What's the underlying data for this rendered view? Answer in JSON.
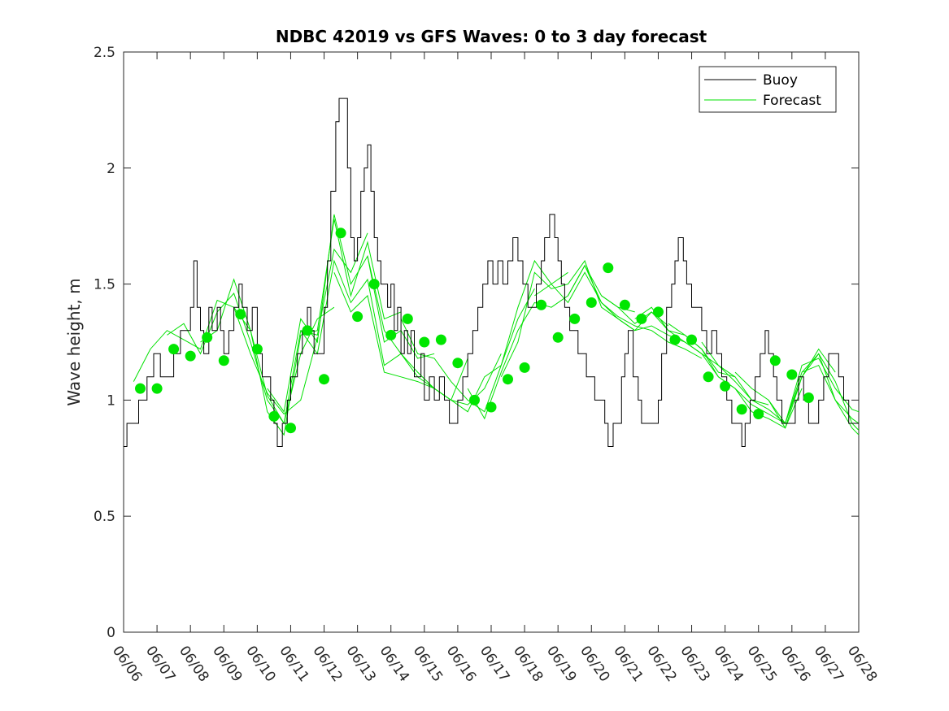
{
  "chart_data": {
    "type": "line",
    "title": "NDBC 42019 vs GFS Waves: 0 to 3 day forecast",
    "ylabel": "Wave height, m",
    "xlabel": "",
    "ylim": [
      0,
      2.5
    ],
    "yticks": [
      0,
      0.5,
      1,
      1.5,
      2,
      2.5
    ],
    "ytick_labels": [
      "0",
      "0.5",
      "1",
      "1.5",
      "2",
      "2.5"
    ],
    "xlim": [
      0,
      22
    ],
    "xtick_labels": [
      "06/06",
      "06/07",
      "06/08",
      "06/09",
      "06/10",
      "06/11",
      "06/12",
      "06/13",
      "06/14",
      "06/15",
      "06/16",
      "06/17",
      "06/18",
      "06/19",
      "06/20",
      "06/21",
      "06/22",
      "06/23",
      "06/24",
      "06/25",
      "06/26",
      "06/27",
      "06/28"
    ],
    "grid": false,
    "legend": {
      "placement": "top-right",
      "entries": [
        "Buoy",
        "Forecast"
      ]
    },
    "colors": {
      "buoy": "#000000",
      "forecast": "#00e000",
      "marker": "#00e600",
      "axis": "#262626"
    },
    "buoy": {
      "name": "Buoy",
      "x": [
        0,
        0.1,
        0.25,
        0.45,
        0.55,
        0.7,
        0.9,
        1.1,
        1.3,
        1.5,
        1.7,
        1.9,
        2.0,
        2.1,
        2.2,
        2.3,
        2.4,
        2.55,
        2.65,
        2.8,
        2.9,
        3.0,
        3.15,
        3.3,
        3.45,
        3.55,
        3.7,
        3.85,
        4.0,
        4.15,
        4.25,
        4.4,
        4.5,
        4.6,
        4.75,
        4.9,
        5.0,
        5.1,
        5.2,
        5.35,
        5.5,
        5.6,
        5.7,
        5.85,
        6.0,
        6.1,
        6.2,
        6.35,
        6.45,
        6.55,
        6.7,
        6.8,
        6.9,
        7.0,
        7.1,
        7.2,
        7.3,
        7.4,
        7.5,
        7.6,
        7.7,
        7.8,
        7.9,
        8.0,
        8.1,
        8.2,
        8.3,
        8.4,
        8.5,
        8.6,
        8.7,
        8.8,
        8.9,
        9.0,
        9.15,
        9.3,
        9.45,
        9.6,
        9.75,
        9.9,
        10.0,
        10.15,
        10.3,
        10.45,
        10.6,
        10.75,
        10.9,
        11.05,
        11.2,
        11.35,
        11.5,
        11.65,
        11.8,
        11.95,
        12.1,
        12.25,
        12.35,
        12.5,
        12.6,
        12.75,
        12.9,
        13.0,
        13.1,
        13.2,
        13.35,
        13.5,
        13.6,
        13.7,
        13.85,
        14.0,
        14.1,
        14.25,
        14.4,
        14.5,
        14.65,
        14.8,
        14.9,
        15.0,
        15.1,
        15.25,
        15.4,
        15.5,
        15.6,
        15.75,
        15.85,
        16.0,
        16.1,
        16.25,
        16.4,
        16.5,
        16.6,
        16.75,
        16.85,
        17.0,
        17.15,
        17.3,
        17.45,
        17.6,
        17.75,
        17.9,
        18.05,
        18.2,
        18.35,
        18.5,
        18.6,
        18.75,
        18.9,
        19.05,
        19.2,
        19.3,
        19.45,
        19.55,
        19.7,
        19.85,
        20.0,
        20.1,
        20.2,
        20.35,
        20.5,
        20.65,
        20.8,
        20.95,
        21.1,
        21.25,
        21.4,
        21.55,
        21.7,
        21.85,
        22.0
      ],
      "values": [
        0.8,
        0.9,
        0.9,
        1.0,
        1.0,
        1.1,
        1.2,
        1.1,
        1.1,
        1.2,
        1.3,
        1.3,
        1.4,
        1.6,
        1.4,
        1.3,
        1.2,
        1.4,
        1.3,
        1.4,
        1.3,
        1.2,
        1.3,
        1.4,
        1.5,
        1.4,
        1.3,
        1.4,
        1.2,
        1.1,
        1.1,
        1.0,
        0.9,
        0.8,
        0.9,
        1.0,
        1.1,
        1.1,
        1.2,
        1.3,
        1.4,
        1.3,
        1.2,
        1.2,
        1.4,
        1.6,
        1.9,
        2.2,
        2.3,
        2.3,
        2.0,
        1.7,
        1.6,
        1.7,
        1.9,
        2.0,
        2.1,
        1.9,
        1.7,
        1.6,
        1.5,
        1.5,
        1.4,
        1.5,
        1.3,
        1.4,
        1.2,
        1.3,
        1.2,
        1.3,
        1.1,
        1.1,
        1.2,
        1.0,
        1.1,
        1.0,
        1.1,
        1.0,
        0.9,
        0.9,
        1.0,
        1.1,
        1.2,
        1.3,
        1.4,
        1.5,
        1.6,
        1.5,
        1.6,
        1.5,
        1.6,
        1.7,
        1.6,
        1.5,
        1.4,
        1.4,
        1.5,
        1.6,
        1.7,
        1.8,
        1.7,
        1.6,
        1.5,
        1.4,
        1.3,
        1.3,
        1.2,
        1.2,
        1.1,
        1.1,
        1.0,
        1.0,
        0.9,
        0.8,
        0.9,
        0.9,
        1.1,
        1.2,
        1.3,
        1.1,
        1.0,
        0.9,
        0.9,
        0.9,
        0.9,
        1.0,
        1.2,
        1.4,
        1.5,
        1.6,
        1.7,
        1.6,
        1.5,
        1.4,
        1.4,
        1.3,
        1.2,
        1.3,
        1.2,
        1.1,
        1.0,
        0.9,
        0.9,
        0.8,
        0.9,
        1.0,
        1.1,
        1.2,
        1.3,
        1.2,
        1.1,
        1.0,
        0.9,
        0.9,
        0.9,
        1.0,
        1.1,
        1.0,
        0.9,
        0.9,
        1.0,
        1.1,
        1.2,
        1.2,
        1.1,
        1.0,
        0.9,
        0.9,
        0.9
      ]
    },
    "forecast_series": [
      {
        "x": [
          0.3,
          0.8,
          1.3,
          1.8,
          2.3,
          2.8,
          3.3,
          3.8,
          4.3,
          4.8,
          5.3,
          5.8
        ],
        "values": [
          1.08,
          1.22,
          1.3,
          1.26,
          1.22,
          1.43,
          1.4,
          1.2,
          1.03,
          0.94,
          1.0,
          1.27
        ]
      },
      {
        "x": [
          1.3,
          1.8,
          2.3,
          2.8,
          3.3,
          3.8,
          4.3,
          4.8,
          5.3,
          5.8,
          6.3
        ],
        "values": [
          1.28,
          1.33,
          1.2,
          1.38,
          1.46,
          1.25,
          1.0,
          0.9,
          1.2,
          1.35,
          1.4
        ]
      },
      {
        "x": [
          2.3,
          2.8,
          3.3,
          3.8,
          4.3,
          4.8,
          5.3,
          5.8,
          6.3,
          6.8,
          7.3
        ],
        "values": [
          1.25,
          1.3,
          1.52,
          1.3,
          1.02,
          0.9,
          1.3,
          1.28,
          1.65,
          1.55,
          1.72
        ]
      },
      {
        "x": [
          3.3,
          3.8,
          4.3,
          4.8,
          5.3,
          5.8,
          6.3,
          6.8,
          7.3,
          7.8,
          8.3
        ],
        "values": [
          1.4,
          1.3,
          0.95,
          0.85,
          1.28,
          1.3,
          1.78,
          1.45,
          1.68,
          1.35,
          1.38
        ]
      },
      {
        "x": [
          4.3,
          4.8,
          5.3,
          5.8,
          6.3,
          6.8,
          7.3,
          7.8,
          8.3,
          8.8,
          9.3
        ],
        "values": [
          1.05,
          0.95,
          1.35,
          1.25,
          1.8,
          1.5,
          1.62,
          1.25,
          1.3,
          1.18,
          1.2
        ]
      },
      {
        "x": [
          5.3,
          5.8,
          6.3,
          6.8,
          7.3,
          7.8,
          8.3,
          8.8,
          9.3,
          9.8,
          10.3
        ],
        "values": [
          1.3,
          1.2,
          1.6,
          1.42,
          1.52,
          1.15,
          1.2,
          1.12,
          1.05,
          1.0,
          1.18
        ]
      },
      {
        "x": [
          6.3,
          6.8,
          7.3,
          7.8,
          8.3,
          8.8,
          9.3,
          9.8,
          10.3,
          10.8,
          11.3
        ],
        "values": [
          1.55,
          1.38,
          1.45,
          1.12,
          1.1,
          1.08,
          1.05,
          1.0,
          0.98,
          1.05,
          1.2
        ]
      },
      {
        "x": [
          7.3,
          7.8,
          8.3,
          8.8,
          9.3,
          9.8,
          10.3,
          10.8,
          11.3,
          11.8,
          12.3
        ],
        "values": [
          1.62,
          1.3,
          1.2,
          1.1,
          1.05,
          1.0,
          0.95,
          1.1,
          1.15,
          1.35,
          1.48
        ]
      },
      {
        "x": [
          8.3,
          8.8,
          9.3,
          9.8,
          10.3,
          10.8,
          11.3,
          11.8,
          12.3,
          12.8,
          13.3
        ],
        "values": [
          1.35,
          1.2,
          1.18,
          1.08,
          1.0,
          0.95,
          1.15,
          1.4,
          1.6,
          1.5,
          1.55
        ]
      },
      {
        "x": [
          10.3,
          10.8,
          11.3,
          11.8,
          12.3,
          12.8,
          13.3,
          13.8,
          14.3,
          14.8,
          15.3
        ],
        "values": [
          1.05,
          0.92,
          1.12,
          1.3,
          1.42,
          1.4,
          1.45,
          1.58,
          1.45,
          1.4,
          1.38
        ]
      },
      {
        "x": [
          11.3,
          11.8,
          12.3,
          12.8,
          13.3,
          13.8,
          14.3,
          14.8,
          15.3,
          15.8,
          16.3
        ],
        "values": [
          1.1,
          1.25,
          1.55,
          1.48,
          1.5,
          1.6,
          1.4,
          1.35,
          1.3,
          1.38,
          1.32
        ]
      },
      {
        "x": [
          12.3,
          12.8,
          13.3,
          13.8,
          14.3,
          14.8,
          15.3,
          15.8,
          16.3,
          16.8,
          17.3
        ],
        "values": [
          1.45,
          1.5,
          1.42,
          1.55,
          1.42,
          1.36,
          1.32,
          1.3,
          1.25,
          1.22,
          1.18
        ]
      },
      {
        "x": [
          13.3,
          13.8,
          14.3,
          14.8,
          15.3,
          15.8,
          16.3,
          16.8,
          17.3,
          17.8,
          18.3
        ],
        "values": [
          1.45,
          1.58,
          1.42,
          1.35,
          1.3,
          1.32,
          1.28,
          1.25,
          1.2,
          1.15,
          1.1
        ]
      },
      {
        "x": [
          14.3,
          14.8,
          15.3,
          15.8,
          16.3,
          16.8,
          17.3,
          17.8,
          18.3,
          18.8,
          19.3
        ],
        "values": [
          1.45,
          1.4,
          1.33,
          1.38,
          1.3,
          1.28,
          1.22,
          1.12,
          1.1,
          1.0,
          0.98
        ]
      },
      {
        "x": [
          15.3,
          15.8,
          16.3,
          16.8,
          17.3,
          17.8,
          18.3,
          18.8,
          19.3,
          19.8,
          20.3
        ],
        "values": [
          1.35,
          1.4,
          1.3,
          1.25,
          1.2,
          1.1,
          1.05,
          0.95,
          0.92,
          0.88,
          1.05
        ]
      },
      {
        "x": [
          16.3,
          16.8,
          17.3,
          17.8,
          18.3,
          18.8,
          19.3,
          19.8,
          20.3,
          20.8,
          21.3
        ],
        "values": [
          1.33,
          1.28,
          1.22,
          1.1,
          1.05,
          0.98,
          0.94,
          0.9,
          1.1,
          1.22,
          1.12
        ]
      },
      {
        "x": [
          17.3,
          17.8,
          18.3,
          18.8,
          19.3,
          19.8,
          20.3,
          20.8,
          21.3,
          21.8,
          22.0
        ],
        "values": [
          1.25,
          1.15,
          1.08,
          1.0,
          0.96,
          0.9,
          1.15,
          1.18,
          1.05,
          0.96,
          0.95
        ]
      },
      {
        "x": [
          18.3,
          18.8,
          19.3,
          19.8,
          20.3,
          20.8,
          21.3,
          21.8,
          22.0
        ],
        "values": [
          1.12,
          1.05,
          1.0,
          0.88,
          1.1,
          1.2,
          1.0,
          0.92,
          0.9
        ]
      },
      {
        "x": [
          19.3,
          19.8,
          20.3,
          20.8,
          21.3,
          21.8,
          22.0
        ],
        "values": [
          1.0,
          0.9,
          1.12,
          1.2,
          1.08,
          0.9,
          0.87
        ]
      },
      {
        "x": [
          20.3,
          20.8,
          21.3,
          21.8,
          22.0
        ],
        "values": [
          1.12,
          1.15,
          1.0,
          0.88,
          0.85
        ]
      }
    ],
    "forecast_markers": {
      "x": [
        0.5,
        1,
        1.5,
        2,
        2.5,
        3,
        3.5,
        4,
        4.5,
        5,
        5.5,
        6,
        6.5,
        7,
        7.5,
        8,
        8.5,
        9,
        9.5,
        10,
        10.5,
        11,
        11.5,
        12,
        12.5,
        13,
        13.5,
        14,
        14.5,
        15,
        15.5,
        16,
        16.5,
        17,
        17.5,
        18,
        18.5,
        19,
        19.5,
        20,
        20.5,
        21
      ],
      "values": [
        1.05,
        1.05,
        1.22,
        1.19,
        1.27,
        1.17,
        1.37,
        1.22,
        0.93,
        0.88,
        1.3,
        1.09,
        1.72,
        1.36,
        1.5,
        1.28,
        1.35,
        1.25,
        1.26,
        1.16,
        1.0,
        0.97,
        1.09,
        1.14,
        1.41,
        1.27,
        1.35,
        1.42,
        1.57,
        1.41,
        1.35,
        1.38,
        1.26,
        1.26,
        1.1,
        1.06,
        0.96,
        0.94,
        1.17,
        1.11,
        1.01,
        null
      ]
    }
  }
}
